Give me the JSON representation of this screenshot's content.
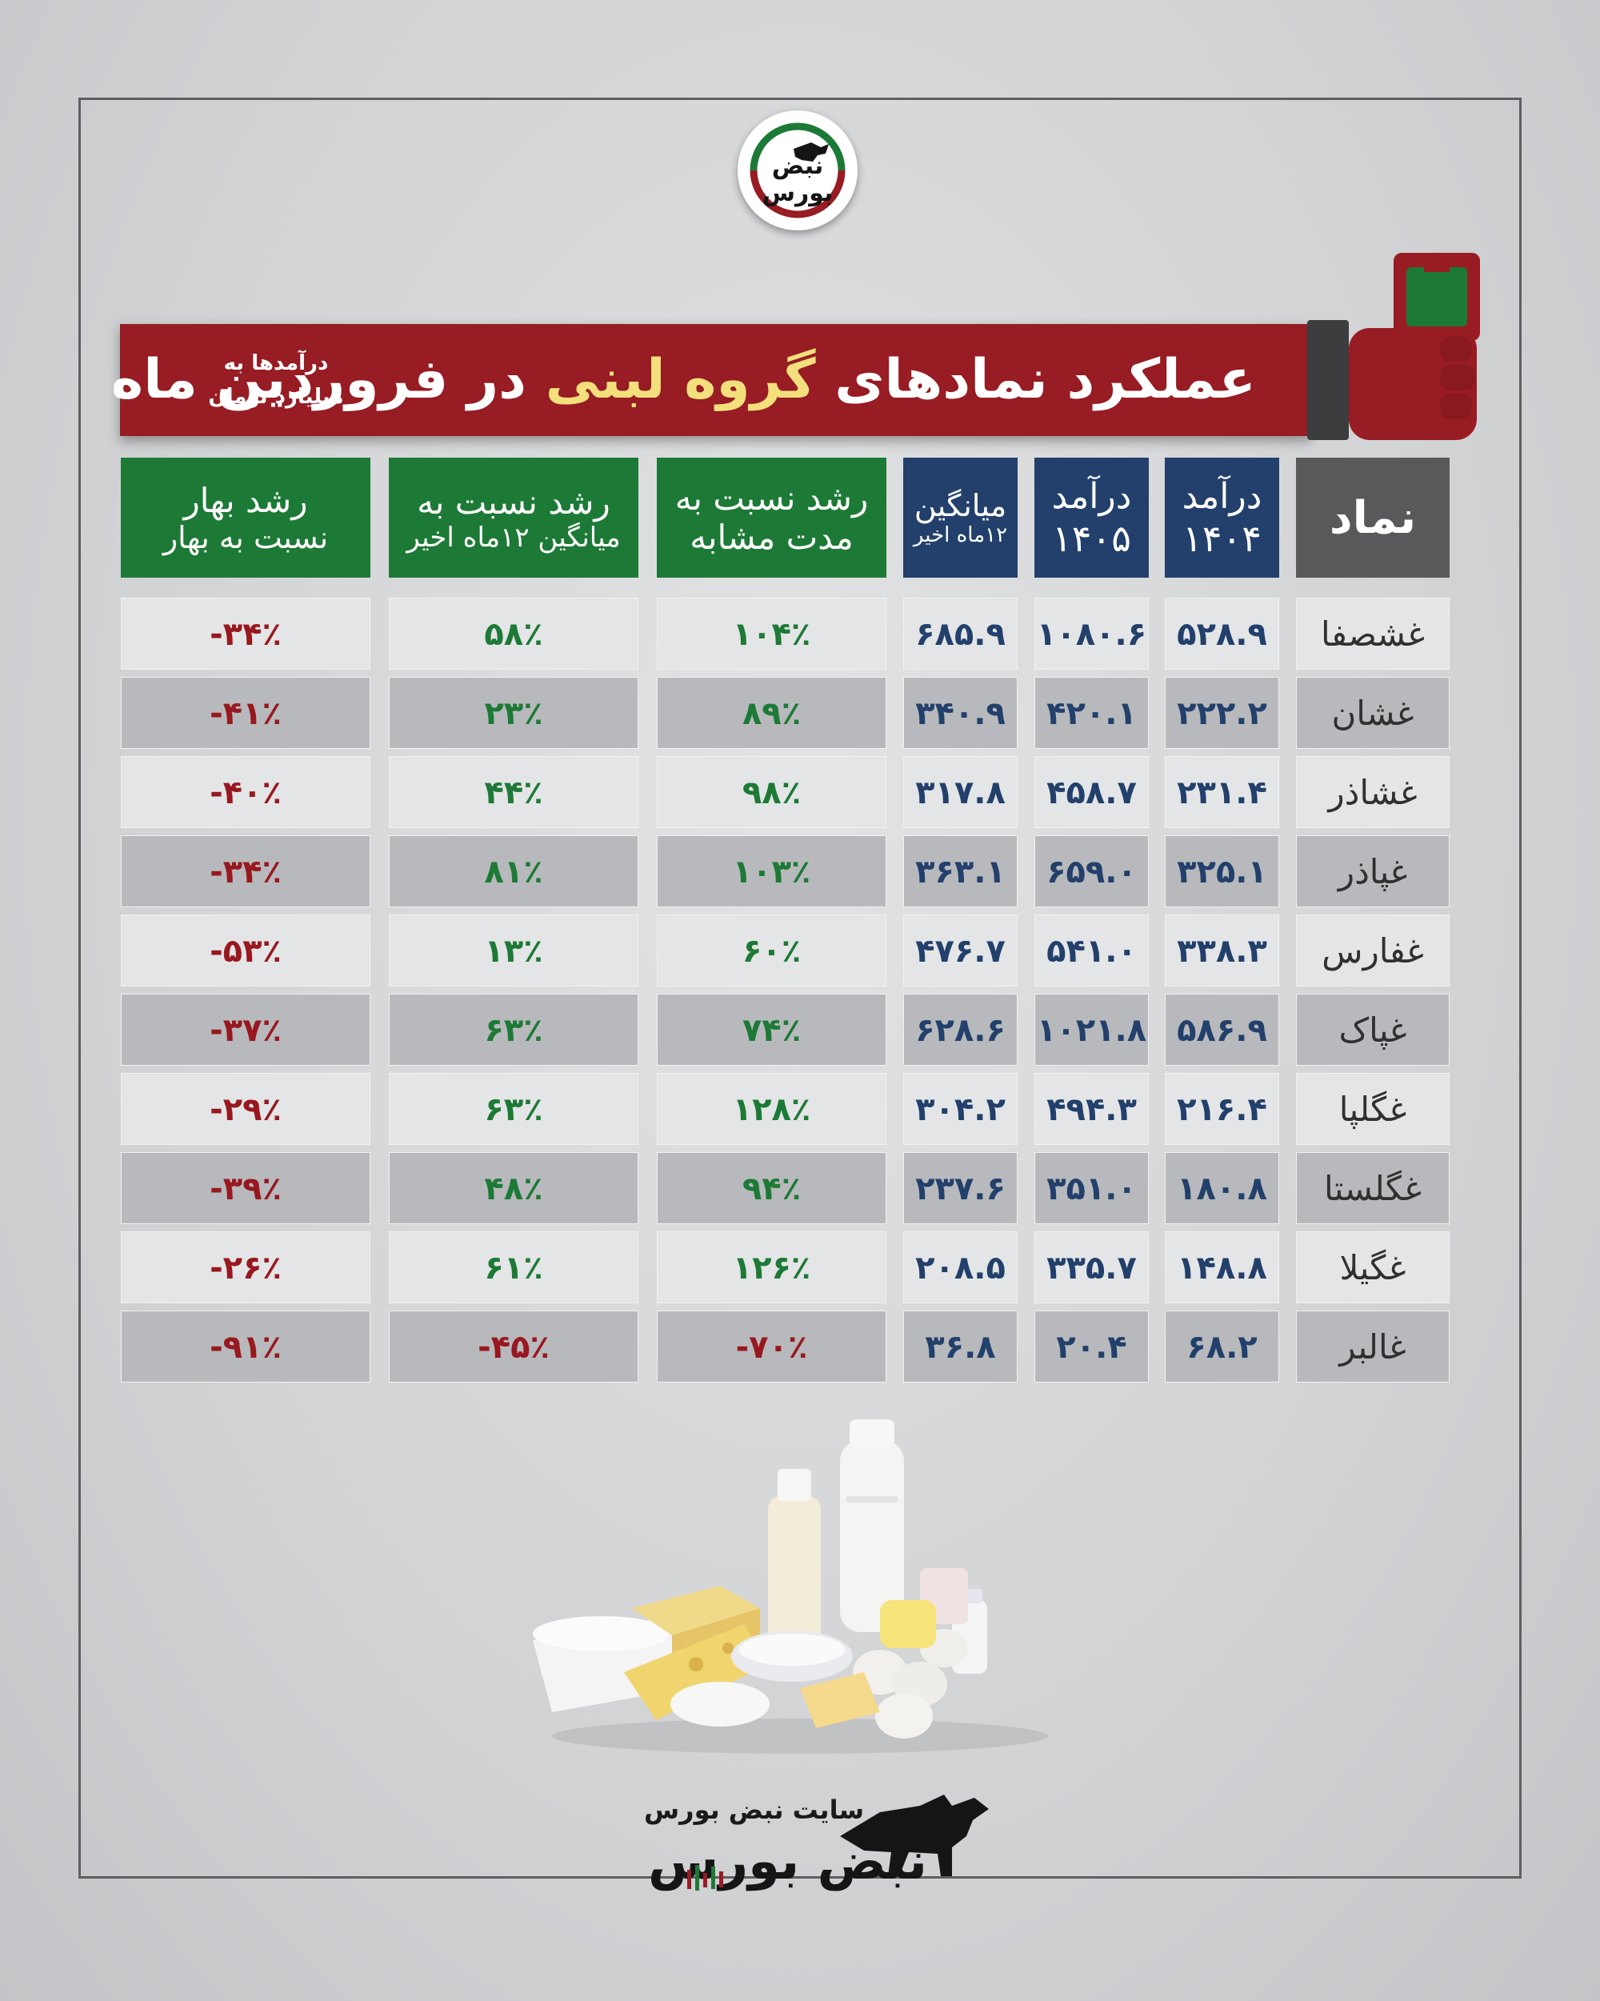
{
  "brand": {
    "logo_text_top": "نبض",
    "logo_text_bottom": "بورس",
    "footer_site": "سایت نبض بورس",
    "footer_name": "نبض بورس"
  },
  "title": {
    "prefix": "عملکرد نمادهای ",
    "highlight": "گروه لبنی",
    "suffix": " در فروردین ماه",
    "note_line1": "درآمدها به",
    "note_line2": "میلیارد تومان"
  },
  "columns": {
    "symbol": "نماد",
    "rev1404_l1": "درآمد",
    "rev1404_l2": "۱۴۰۴",
    "rev1405_l1": "درآمد",
    "rev1405_l2": "۱۴۰۵",
    "avg_l1": "میانگین",
    "avg_l2": "۱۲ماه اخیر",
    "growth_same_l1": "رشد نسبت به",
    "growth_same_l2": "مدت مشابه",
    "growth_avg_l1": "رشد نسبت به",
    "growth_avg_l2": "میانگین ۱۲ماه اخیر",
    "growth_spring_l1": "رشد بهار",
    "growth_spring_l2": "نسبت به بهار"
  },
  "colors": {
    "banner_red": "#971c23",
    "header_blue": "#22406b",
    "header_green": "#1d7a36",
    "header_gray": "#58595b",
    "positive": "#1d7a36",
    "negative": "#98181f"
  },
  "rows": [
    {
      "symbol": "غشصفا",
      "rev1404": "۵۲۸.۹",
      "rev1405": "۱۰۸۰.۶",
      "avg": "۶۸۵.۹",
      "g_same": "۱۰۴٪",
      "g_avg": "۵۸٪",
      "g_spring": "-۳۴٪"
    },
    {
      "symbol": "غشان",
      "rev1404": "۲۲۲.۲",
      "rev1405": "۴۲۰.۱",
      "avg": "۳۴۰.۹",
      "g_same": "۸۹٪",
      "g_avg": "۲۳٪",
      "g_spring": "-۴۱٪"
    },
    {
      "symbol": "غشاذر",
      "rev1404": "۲۳۱.۴",
      "rev1405": "۴۵۸.۷",
      "avg": "۳۱۷.۸",
      "g_same": "۹۸٪",
      "g_avg": "۴۴٪",
      "g_spring": "-۴۰٪"
    },
    {
      "symbol": "غپاذر",
      "rev1404": "۳۲۵.۱",
      "rev1405": "۶۵۹.۰",
      "avg": "۳۶۳.۱",
      "g_same": "۱۰۳٪",
      "g_avg": "۸۱٪",
      "g_spring": "-۳۴٪"
    },
    {
      "symbol": "غفارس",
      "rev1404": "۳۳۸.۳",
      "rev1405": "۵۴۱.۰",
      "avg": "۴۷۶.۷",
      "g_same": "۶۰٪",
      "g_avg": "۱۳٪",
      "g_spring": "-۵۳٪"
    },
    {
      "symbol": "غپاک",
      "rev1404": "۵۸۶.۹",
      "rev1405": "۱۰۲۱.۸",
      "avg": "۶۲۸.۶",
      "g_same": "۷۴٪",
      "g_avg": "۶۳٪",
      "g_spring": "-۳۷٪"
    },
    {
      "symbol": "غگلپا",
      "rev1404": "۲۱۶.۴",
      "rev1405": "۴۹۴.۳",
      "avg": "۳۰۴.۲",
      "g_same": "۱۲۸٪",
      "g_avg": "۶۳٪",
      "g_spring": "-۲۹٪"
    },
    {
      "symbol": "غگلستا",
      "rev1404": "۱۸۰.۸",
      "rev1405": "۳۵۱.۰",
      "avg": "۲۳۷.۶",
      "g_same": "۹۴٪",
      "g_avg": "۴۸٪",
      "g_spring": "-۳۹٪"
    },
    {
      "symbol": "غگیلا",
      "rev1404": "۱۴۸.۸",
      "rev1405": "۳۳۵.۷",
      "avg": "۲۰۸.۵",
      "g_same": "۱۲۶٪",
      "g_avg": "۶۱٪",
      "g_spring": "-۲۶٪"
    },
    {
      "symbol": "غالبر",
      "rev1404": "۶۸.۲",
      "rev1405": "۲۰.۴",
      "avg": "۳۶.۸",
      "g_same": "-۷۰٪",
      "g_avg": "-۴۵٪",
      "g_spring": "-۹۱٪"
    }
  ]
}
